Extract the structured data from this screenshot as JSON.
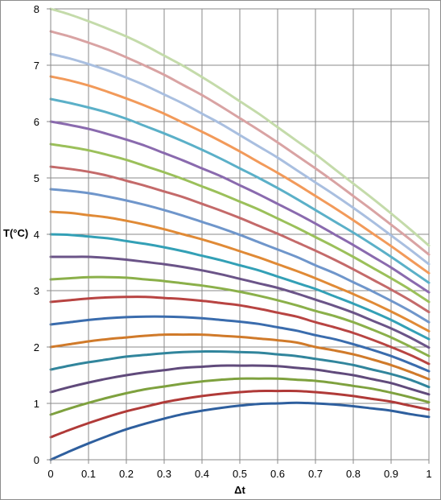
{
  "chart_data": {
    "type": "line",
    "title": "",
    "xlabel": "Δt",
    "ylabel": "T(°C)",
    "xlim": [
      0,
      1
    ],
    "ylim": [
      0,
      8
    ],
    "xticks": [
      "0",
      "0.1",
      "0.2",
      "0.3",
      "0.4",
      "0.5",
      "0.6",
      "0.7",
      "0.8",
      "0.9",
      "1"
    ],
    "yticks": [
      "0",
      "1",
      "2",
      "3",
      "4",
      "5",
      "6",
      "7",
      "8"
    ],
    "grid": true,
    "legend": "none",
    "x": [
      0,
      0.05,
      0.1,
      0.15,
      0.2,
      0.25,
      0.3,
      0.35,
      0.4,
      0.45,
      0.5,
      0.55,
      0.6,
      0.65,
      0.7,
      0.75,
      0.8,
      0.85,
      0.9,
      0.95,
      1
    ],
    "series": [
      {
        "color": "#2e5f9e",
        "values": [
          0.0,
          0.15,
          0.29,
          0.42,
          0.54,
          0.64,
          0.73,
          0.81,
          0.87,
          0.92,
          0.96,
          0.99,
          1.0,
          1.01,
          1.0,
          0.98,
          0.95,
          0.91,
          0.87,
          0.81,
          0.76
        ]
      },
      {
        "color": "#b03a38",
        "values": [
          0.4,
          0.53,
          0.65,
          0.76,
          0.86,
          0.94,
          1.02,
          1.08,
          1.13,
          1.17,
          1.2,
          1.22,
          1.22,
          1.22,
          1.2,
          1.17,
          1.13,
          1.08,
          1.03,
          0.96,
          0.89
        ]
      },
      {
        "color": "#7ea13e",
        "values": [
          0.8,
          0.91,
          1.01,
          1.1,
          1.18,
          1.25,
          1.3,
          1.35,
          1.39,
          1.42,
          1.44,
          1.44,
          1.44,
          1.42,
          1.4,
          1.36,
          1.31,
          1.26,
          1.19,
          1.11,
          1.02
        ]
      },
      {
        "color": "#604a7b",
        "values": [
          1.2,
          1.29,
          1.37,
          1.44,
          1.5,
          1.55,
          1.59,
          1.63,
          1.65,
          1.67,
          1.67,
          1.67,
          1.66,
          1.63,
          1.6,
          1.55,
          1.5,
          1.43,
          1.36,
          1.26,
          1.16
        ]
      },
      {
        "color": "#31859c",
        "values": [
          1.6,
          1.67,
          1.73,
          1.78,
          1.83,
          1.86,
          1.89,
          1.91,
          1.92,
          1.92,
          1.91,
          1.9,
          1.87,
          1.84,
          1.79,
          1.74,
          1.68,
          1.6,
          1.52,
          1.42,
          1.29
        ]
      },
      {
        "color": "#d07a2a",
        "values": [
          2.0,
          2.05,
          2.1,
          2.14,
          2.17,
          2.2,
          2.22,
          2.22,
          2.22,
          2.2,
          2.18,
          2.15,
          2.12,
          2.08,
          2.0,
          1.94,
          1.87,
          1.78,
          1.68,
          1.56,
          1.43
        ]
      },
      {
        "color": "#3a6cad",
        "values": [
          2.4,
          2.44,
          2.48,
          2.51,
          2.53,
          2.54,
          2.54,
          2.53,
          2.51,
          2.48,
          2.45,
          2.41,
          2.35,
          2.29,
          2.21,
          2.14,
          2.05,
          1.95,
          1.84,
          1.71,
          1.57
        ]
      },
      {
        "color": "#b84442",
        "values": [
          2.8,
          2.83,
          2.86,
          2.88,
          2.89,
          2.89,
          2.87,
          2.85,
          2.82,
          2.78,
          2.74,
          2.68,
          2.61,
          2.54,
          2.44,
          2.35,
          2.25,
          2.13,
          2.0,
          1.86,
          1.7
        ]
      },
      {
        "color": "#8bb04a",
        "values": [
          3.2,
          3.22,
          3.24,
          3.24,
          3.23,
          3.2,
          3.17,
          3.13,
          3.09,
          3.04,
          2.98,
          2.91,
          2.83,
          2.74,
          2.64,
          2.55,
          2.44,
          2.31,
          2.17,
          2.01,
          1.84
        ]
      },
      {
        "color": "#6b5488",
        "values": [
          3.6,
          3.6,
          3.6,
          3.58,
          3.55,
          3.51,
          3.47,
          3.42,
          3.36,
          3.29,
          3.21,
          3.13,
          3.05,
          2.95,
          2.84,
          2.73,
          2.61,
          2.47,
          2.33,
          2.17,
          1.99
        ]
      },
      {
        "color": "#33a0b6",
        "values": [
          4.0,
          3.99,
          3.96,
          3.93,
          3.88,
          3.83,
          3.77,
          3.7,
          3.62,
          3.54,
          3.45,
          3.36,
          3.25,
          3.14,
          3.03,
          2.9,
          2.77,
          2.63,
          2.48,
          2.31,
          2.14
        ]
      },
      {
        "color": "#e08a36",
        "values": [
          4.4,
          4.38,
          4.34,
          4.3,
          4.24,
          4.17,
          4.09,
          4.0,
          3.91,
          3.81,
          3.7,
          3.59,
          3.47,
          3.35,
          3.22,
          3.08,
          2.94,
          2.79,
          2.63,
          2.46,
          2.28
        ]
      },
      {
        "color": "#6f96cb",
        "values": [
          4.8,
          4.77,
          4.73,
          4.67,
          4.6,
          4.52,
          4.43,
          4.33,
          4.22,
          4.11,
          3.99,
          3.86,
          3.73,
          3.6,
          3.45,
          3.31,
          3.15,
          2.99,
          2.82,
          2.64,
          2.44
        ]
      },
      {
        "color": "#c46a6a",
        "values": [
          5.2,
          5.16,
          5.11,
          5.04,
          4.95,
          4.86,
          4.76,
          4.66,
          4.54,
          4.42,
          4.29,
          4.15,
          4.01,
          3.86,
          3.71,
          3.55,
          3.38,
          3.2,
          3.02,
          2.83,
          2.62
        ]
      },
      {
        "color": "#9bc05a",
        "values": [
          5.6,
          5.55,
          5.49,
          5.41,
          5.32,
          5.21,
          5.1,
          4.98,
          4.85,
          4.72,
          4.58,
          4.44,
          4.28,
          4.12,
          3.95,
          3.78,
          3.6,
          3.41,
          3.22,
          3.02,
          2.8
        ]
      },
      {
        "color": "#8a6aae",
        "values": [
          6.0,
          5.94,
          5.87,
          5.78,
          5.68,
          5.57,
          5.44,
          5.31,
          5.17,
          5.03,
          4.87,
          4.71,
          4.54,
          4.37,
          4.19,
          4.0,
          3.81,
          3.61,
          3.41,
          3.19,
          2.97
        ]
      },
      {
        "color": "#5bb0c8",
        "values": [
          6.4,
          6.33,
          6.25,
          6.16,
          6.05,
          5.92,
          5.79,
          5.65,
          5.5,
          5.34,
          5.17,
          5.0,
          4.82,
          4.63,
          4.43,
          4.23,
          4.03,
          3.82,
          3.6,
          3.37,
          3.14
        ]
      },
      {
        "color": "#f29a5a",
        "values": [
          6.8,
          6.73,
          6.64,
          6.53,
          6.41,
          6.28,
          6.14,
          5.98,
          5.82,
          5.65,
          5.47,
          5.28,
          5.09,
          4.89,
          4.68,
          4.47,
          4.25,
          4.02,
          3.79,
          3.55,
          3.31
        ]
      },
      {
        "color": "#a9bfe0",
        "values": [
          7.2,
          7.12,
          7.02,
          6.91,
          6.78,
          6.64,
          6.48,
          6.32,
          6.14,
          5.96,
          5.76,
          5.56,
          5.36,
          5.14,
          4.92,
          4.7,
          4.47,
          4.23,
          3.98,
          3.73,
          3.47
        ]
      },
      {
        "color": "#d9a3a3",
        "values": [
          7.6,
          7.51,
          7.4,
          7.28,
          7.14,
          6.99,
          6.83,
          6.65,
          6.47,
          6.27,
          6.06,
          5.85,
          5.63,
          5.4,
          5.17,
          4.93,
          4.68,
          4.43,
          4.17,
          3.91,
          3.64
        ]
      },
      {
        "color": "#c4dbaa",
        "values": [
          8.0,
          7.9,
          7.78,
          7.65,
          7.51,
          7.35,
          7.17,
          6.99,
          6.79,
          6.58,
          6.36,
          6.14,
          5.9,
          5.66,
          5.42,
          5.16,
          4.9,
          4.64,
          4.37,
          4.09,
          3.8
        ]
      }
    ]
  }
}
